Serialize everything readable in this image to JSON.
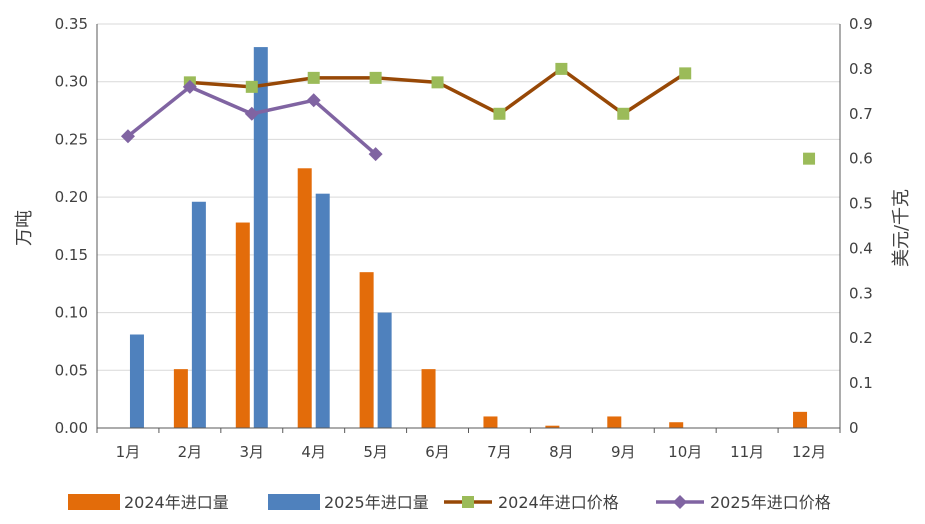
{
  "chart_data": {
    "type": "bar+line",
    "categories": [
      "1月",
      "2月",
      "3月",
      "4月",
      "5月",
      "6月",
      "7月",
      "8月",
      "9月",
      "10月",
      "11月",
      "12月"
    ],
    "y_left": {
      "label": "万吨",
      "min": 0,
      "max": 0.35,
      "ticks": [
        "0.00",
        "0.05",
        "0.10",
        "0.15",
        "0.20",
        "0.25",
        "0.30",
        "0.35"
      ]
    },
    "y_right": {
      "label": "美元/千克",
      "min": 0,
      "max": 0.9,
      "ticks": [
        "0",
        "0.1",
        "0.2",
        "0.3",
        "0.4",
        "0.5",
        "0.6",
        "0.7",
        "0.8",
        "0.9"
      ]
    },
    "grid": true,
    "legend_position": "bottom",
    "series": [
      {
        "name": "2024年进口量",
        "type": "bar",
        "axis": "left",
        "color": "#E36C0A",
        "values": [
          null,
          0.051,
          0.178,
          0.225,
          0.135,
          0.051,
          0.01,
          0.002,
          0.01,
          0.005,
          null,
          0.014
        ]
      },
      {
        "name": "2025年进口量",
        "type": "bar",
        "axis": "left",
        "color": "#4F81BD",
        "values": [
          0.081,
          0.196,
          0.33,
          0.203,
          0.1,
          null,
          null,
          null,
          null,
          null,
          null,
          null
        ]
      },
      {
        "name": "2024年进口价格",
        "type": "line",
        "axis": "right",
        "color": "#9BBB59",
        "line_color": "#974806",
        "marker": "square",
        "values": [
          null,
          0.77,
          0.76,
          0.78,
          0.78,
          0.77,
          0.7,
          0.8,
          0.7,
          0.79,
          null,
          0.6
        ]
      },
      {
        "name": "2025年进口价格",
        "type": "line",
        "axis": "right",
        "color": "#8064A2",
        "line_color": "#8064A2",
        "marker": "diamond",
        "values": [
          0.65,
          0.76,
          0.7,
          0.73,
          0.61,
          null,
          null,
          null,
          null,
          null,
          null,
          null
        ]
      }
    ]
  }
}
